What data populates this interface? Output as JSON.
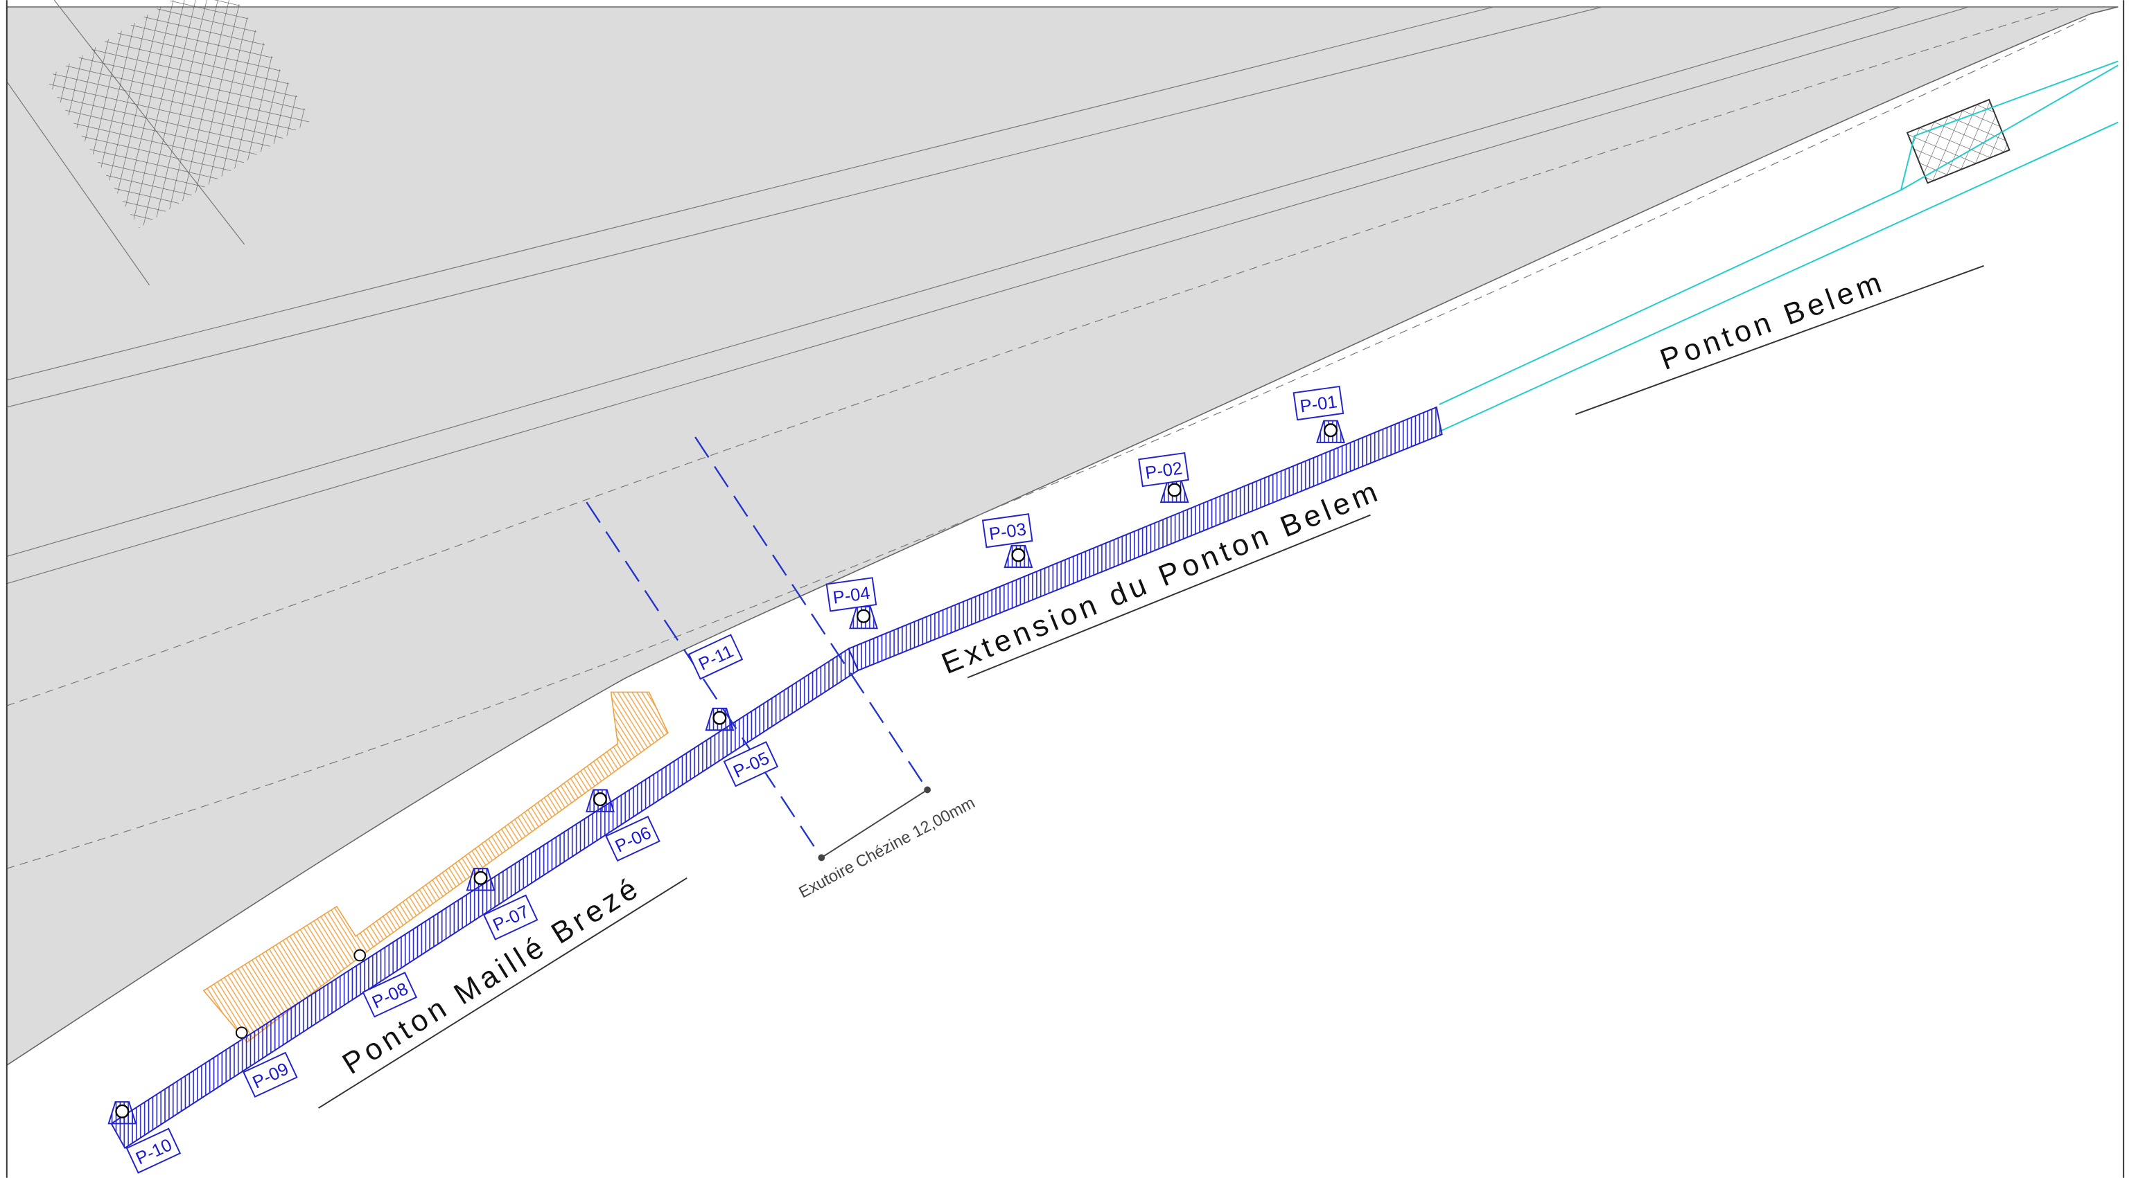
{
  "pontons": [
    "Ponton Belem",
    "Extension du Ponton Belem",
    "Ponton Maillé Brezé"
  ],
  "piles": [
    "P-01",
    "P-02",
    "P-03",
    "P-04",
    "P-05",
    "P-06",
    "P-07",
    "P-08",
    "P-09",
    "P-10",
    "P-11"
  ],
  "annotation": "Exutoire Chézine 12,00mm"
}
